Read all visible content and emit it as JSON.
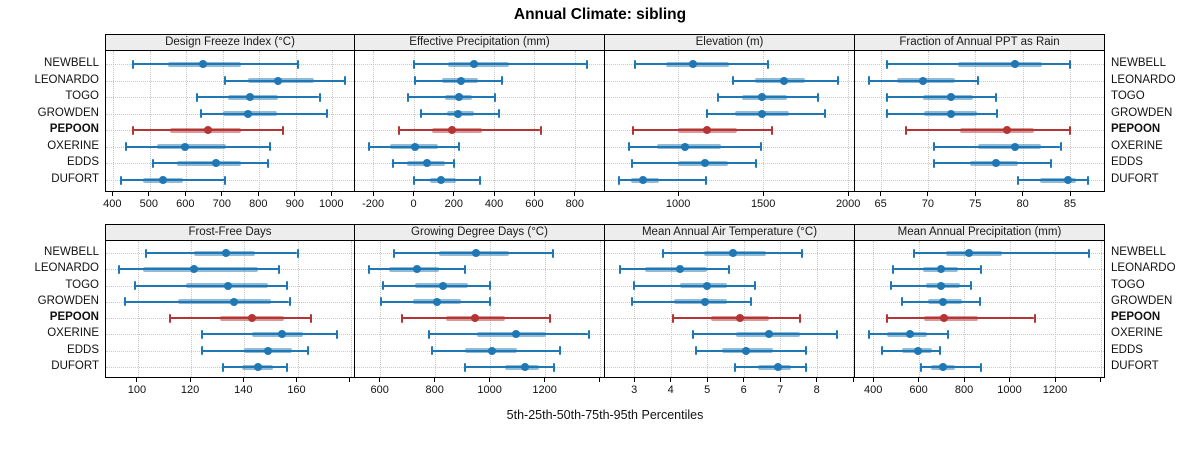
{
  "title": "Annual Climate: sibling",
  "caption": "5th-25th-50th-75th-95th Percentiles",
  "colors": {
    "series": "#1f77b4",
    "highlight": "#b53434",
    "strip_bg": "#ededed",
    "grid": "#c9c9c9",
    "border": "#000000"
  },
  "chart_data": {
    "type": "dotplot-percentiles",
    "percentiles": [
      5,
      25,
      50,
      75,
      95
    ],
    "legend_note": "thin line with caps = 5th-95th, thick band = 25th-75th, dot = median",
    "rows": [
      {
        "name": "NEWBELL",
        "highlight": false
      },
      {
        "name": "LEONARDO",
        "highlight": false
      },
      {
        "name": "TOGO",
        "highlight": false
      },
      {
        "name": "GROWDEN",
        "highlight": false
      },
      {
        "name": "PEPOON",
        "highlight": true
      },
      {
        "name": "OXERINE",
        "highlight": false
      },
      {
        "name": "EDDS",
        "highlight": false
      },
      {
        "name": "DUFORT",
        "highlight": false
      }
    ],
    "highlight_row": "PEPOON",
    "panels": [
      {
        "title": "Design Freeze Index (°C)",
        "grid_row": 0,
        "grid_col": 0,
        "xlim": [
          380,
          1065
        ],
        "ticks": [
          400,
          500,
          600,
          700,
          800,
          900,
          1000
        ],
        "unlabeled_ticks": [],
        "series": [
          [
            455,
            550,
            645,
            750,
            905
          ],
          [
            705,
            770,
            850,
            950,
            1035
          ],
          [
            630,
            715,
            775,
            850,
            965
          ],
          [
            640,
            700,
            770,
            850,
            985
          ],
          [
            455,
            555,
            660,
            750,
            865
          ],
          [
            435,
            520,
            595,
            710,
            830
          ],
          [
            510,
            575,
            680,
            750,
            825
          ],
          [
            420,
            480,
            535,
            590,
            705
          ]
        ]
      },
      {
        "title": "Effective Precipitation (mm)",
        "grid_row": 0,
        "grid_col": 1,
        "xlim": [
          -290,
          950
        ],
        "ticks": [
          -200,
          0,
          200,
          400,
          600,
          800
        ],
        "unlabeled_ticks": [],
        "series": [
          [
            0,
            170,
            300,
            475,
            860
          ],
          [
            5,
            140,
            235,
            320,
            440
          ],
          [
            -25,
            155,
            225,
            290,
            405
          ],
          [
            35,
            165,
            220,
            300,
            425
          ],
          [
            -70,
            90,
            190,
            340,
            630
          ],
          [
            -220,
            -115,
            5,
            120,
            225
          ],
          [
            -100,
            -30,
            65,
            155,
            200
          ],
          [
            0,
            80,
            135,
            210,
            330
          ]
        ]
      },
      {
        "title": "Elevation (m)",
        "grid_row": 0,
        "grid_col": 2,
        "xlim": [
          570,
          2040
        ],
        "ticks": [
          1000,
          1500,
          2000
        ],
        "unlabeled_ticks": [],
        "series": [
          [
            745,
            930,
            1090,
            1300,
            1530
          ],
          [
            1320,
            1450,
            1620,
            1745,
            1940
          ],
          [
            1235,
            1375,
            1490,
            1640,
            1825
          ],
          [
            1170,
            1335,
            1490,
            1655,
            1865
          ],
          [
            735,
            1000,
            1170,
            1345,
            1550
          ],
          [
            710,
            875,
            1040,
            1255,
            1485
          ],
          [
            730,
            1000,
            1160,
            1295,
            1460
          ],
          [
            650,
            725,
            795,
            890,
            1165
          ]
        ]
      },
      {
        "title": "Fraction of Annual PPT as Rain",
        "grid_row": 0,
        "grid_col": 3,
        "xlim": [
          62.3,
          88.7
        ],
        "ticks": [
          65,
          70,
          75,
          80,
          85
        ],
        "unlabeled_ticks": [],
        "series": [
          [
            65.7,
            73.2,
            79.2,
            82.1,
            85.0
          ],
          [
            63.8,
            66.7,
            69.5,
            72.9,
            75.3
          ],
          [
            65.7,
            69.5,
            72.4,
            74.8,
            77.2
          ],
          [
            65.7,
            69.6,
            72.4,
            75.2,
            77.3
          ],
          [
            67.7,
            73.4,
            78.3,
            81.2,
            85.0
          ],
          [
            70.6,
            75.3,
            79.2,
            82.0,
            84.0
          ],
          [
            70.6,
            74.4,
            77.2,
            79.5,
            83.0
          ],
          [
            79.5,
            81.8,
            84.8,
            85.6,
            86.9
          ]
        ]
      },
      {
        "title": "Frost-Free Days",
        "grid_row": 1,
        "grid_col": 0,
        "xlim": [
          88,
          182
        ],
        "ticks": [
          100,
          120,
          140,
          160
        ],
        "unlabeled_ticks": [
          180
        ],
        "series": [
          [
            103,
            121,
            133,
            144,
            160
          ],
          [
            93,
            102,
            121,
            145,
            153
          ],
          [
            99,
            118,
            134,
            149,
            156
          ],
          [
            95,
            115,
            136,
            150,
            157
          ],
          [
            112,
            131,
            143,
            155,
            165
          ],
          [
            124,
            143,
            154,
            162,
            175
          ],
          [
            124,
            140,
            149,
            158,
            164
          ],
          [
            132,
            139,
            145,
            151,
            156
          ]
        ]
      },
      {
        "title": "Growing Degree Days (°C)",
        "grid_row": 1,
        "grid_col": 1,
        "xlim": [
          510,
          1420
        ],
        "ticks": [
          600,
          800,
          1000,
          1200
        ],
        "unlabeled_ticks": [
          1400
        ],
        "series": [
          [
            650,
            815,
            950,
            1070,
            1230
          ],
          [
            560,
            635,
            735,
            815,
            910
          ],
          [
            610,
            730,
            830,
            920,
            1000
          ],
          [
            605,
            720,
            810,
            895,
            1000
          ],
          [
            680,
            840,
            945,
            1055,
            1220
          ],
          [
            780,
            955,
            1095,
            1205,
            1360
          ],
          [
            790,
            910,
            1010,
            1100,
            1255
          ],
          [
            910,
            1055,
            1130,
            1180,
            1235
          ]
        ]
      },
      {
        "title": "Mean Annual Air Temperature (°C)",
        "grid_row": 1,
        "grid_col": 2,
        "xlim": [
          2.2,
          9.05
        ],
        "ticks": [
          3,
          4,
          5,
          6,
          7,
          8
        ],
        "unlabeled_ticks": [
          9
        ],
        "series": [
          [
            3.8,
            4.9,
            5.7,
            6.6,
            7.6
          ],
          [
            2.6,
            3.3,
            4.25,
            5.0,
            5.6
          ],
          [
            3.0,
            4.25,
            5.0,
            5.55,
            6.3
          ],
          [
            2.95,
            4.1,
            4.95,
            5.55,
            6.2
          ],
          [
            4.05,
            5.1,
            5.9,
            6.7,
            7.55
          ],
          [
            4.6,
            5.8,
            6.7,
            7.55,
            8.55
          ],
          [
            4.7,
            5.4,
            6.05,
            6.8,
            7.7
          ],
          [
            5.75,
            6.4,
            6.95,
            7.3,
            7.7
          ]
        ]
      },
      {
        "title": "Mean Annual Precipitation (mm)",
        "grid_row": 1,
        "grid_col": 3,
        "xlim": [
          320,
          1420
        ],
        "ticks": [
          400,
          600,
          800,
          1000,
          1200
        ],
        "unlabeled_ticks": [
          1400
        ],
        "series": [
          [
            580,
            720,
            820,
            965,
            1350
          ],
          [
            485,
            620,
            700,
            775,
            875
          ],
          [
            480,
            630,
            700,
            780,
            830
          ],
          [
            525,
            640,
            705,
            790,
            870
          ],
          [
            460,
            625,
            710,
            860,
            1110
          ],
          [
            380,
            460,
            560,
            635,
            730
          ],
          [
            440,
            525,
            595,
            660,
            695
          ],
          [
            610,
            655,
            705,
            760,
            875
          ]
        ]
      }
    ]
  }
}
